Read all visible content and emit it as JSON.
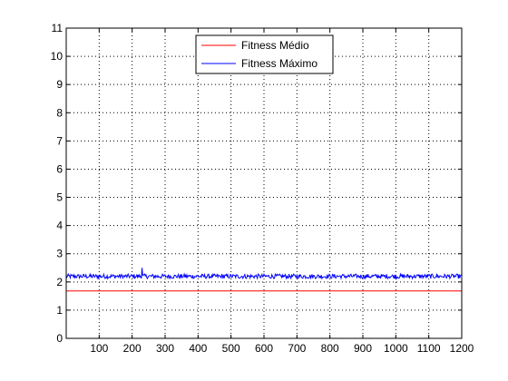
{
  "chart_data": {
    "type": "line",
    "title": "",
    "xlabel": "",
    "ylabel": "",
    "xlim": [
      0,
      1200
    ],
    "ylim": [
      0,
      11
    ],
    "xticks": [
      100,
      200,
      300,
      400,
      500,
      600,
      700,
      800,
      900,
      1000,
      1100,
      1200
    ],
    "yticks": [
      0,
      1,
      2,
      3,
      4,
      5,
      6,
      7,
      8,
      9,
      10,
      11
    ],
    "grid": true,
    "legend_position": "top-center",
    "series": [
      {
        "name": "Fitness Médio",
        "color": "#ff0000",
        "x": [
          0,
          1200
        ],
        "values": [
          1.68,
          1.68
        ]
      },
      {
        "name": "Fitness Máximo",
        "color": "#0000ff",
        "x": [
          0,
          1200
        ],
        "values": [
          2.2,
          2.2
        ],
        "noise_amplitude": 0.08,
        "peak": {
          "x": 230,
          "y": 2.5
        }
      }
    ]
  }
}
